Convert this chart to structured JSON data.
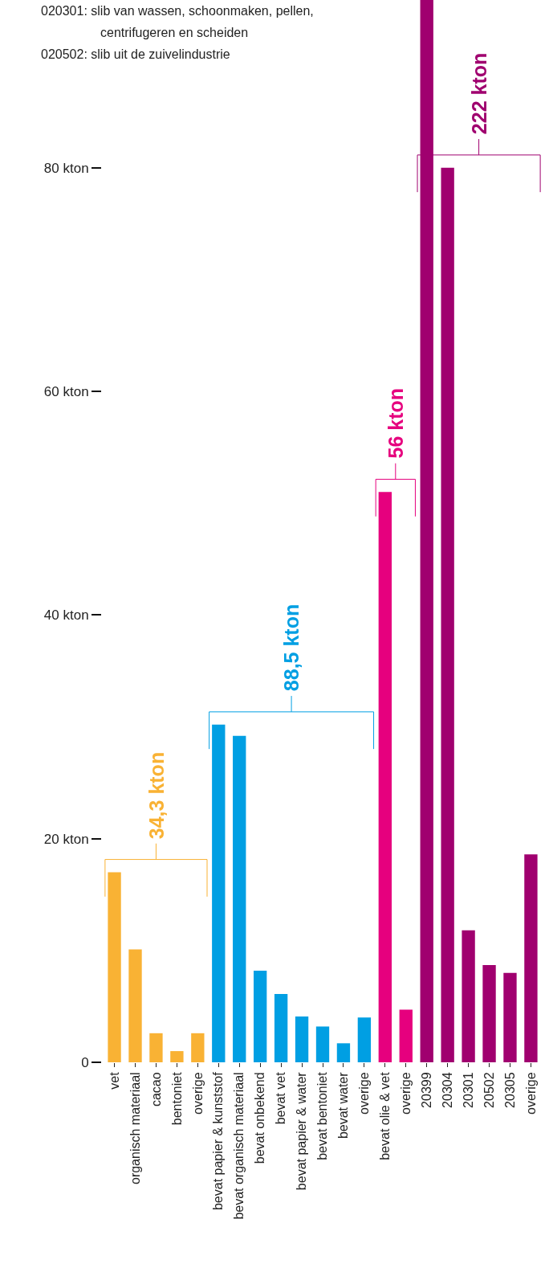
{
  "chart_data": {
    "type": "bar",
    "categories": [
      "vet",
      "organisch materiaal",
      "cacao",
      "bentoniet",
      "overige",
      "bevat papier & kunststof",
      "bevat organisch materiaal",
      "bevat onbekend",
      "bevat vet",
      "bevat papier & water",
      "bevat bentoniet",
      "bevat water",
      "overige",
      "bevat olie & vet",
      "overige",
      "20399",
      "20304",
      "20301",
      "20502",
      "20305",
      "overige"
    ],
    "values": [
      17.0,
      10.1,
      2.6,
      1.0,
      2.6,
      30.2,
      29.2,
      8.2,
      6.1,
      4.1,
      3.2,
      1.7,
      4.0,
      51.0,
      4.7,
      95,
      80,
      11.8,
      8.7,
      8.0,
      18.6
    ],
    "colors": [
      "#f9b234",
      "#f9b234",
      "#f9b234",
      "#f9b234",
      "#f9b234",
      "#009fe3",
      "#009fe3",
      "#009fe3",
      "#009fe3",
      "#009fe3",
      "#009fe3",
      "#009fe3",
      "#009fe3",
      "#e6007e",
      "#e6007e",
      "#a0006f",
      "#a0006f",
      "#a0006f",
      "#a0006f",
      "#a0006f",
      "#a0006f"
    ],
    "ylim": [
      0,
      95
    ],
    "yticks": [
      0,
      {
        "value": 20,
        "label": "20 kton"
      },
      {
        "value": 40,
        "label": "40 kton"
      },
      {
        "value": 60,
        "label": "60 kton"
      },
      {
        "value": 80,
        "label": "80 kton"
      }
    ],
    "annotations": [
      "34,3 kton",
      "88,5 kton",
      "56 kton",
      "222 kton",
      "020301: slib van wassen, schoonmaken, pellen,",
      "centrifugeren en scheiden",
      "020502: slib uit de zuivelindustrie"
    ]
  }
}
